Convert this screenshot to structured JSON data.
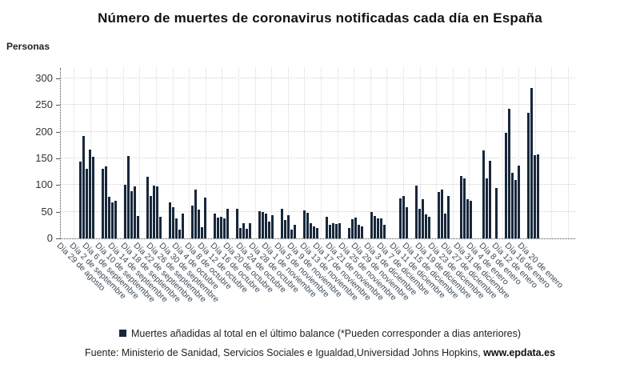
{
  "title": "Número de muertes de coronavirus notificadas cada día en España",
  "y_axis_title": "Personas",
  "legend": {
    "label": "Muertes añadidas al total en el último balance (*Pueden corresponder a dias anteriores)",
    "marker_color": "#17273b"
  },
  "source": {
    "prefix": "Fuente: Ministerio de Sanidad, Servicios Sociales e Igualdad,Universidad Johns Hopkins, ",
    "brand": "www.epdata.es"
  },
  "chart_data": {
    "type": "bar",
    "title": "Número de muertes de coronavirus notificadas cada día en España",
    "xlabel": "",
    "ylabel": "Personas",
    "ylim": [
      0,
      300
    ],
    "yticks": [
      0,
      50,
      100,
      150,
      200,
      250,
      300
    ],
    "grid": true,
    "legend_position": "bottom",
    "bar_color": "#17273b",
    "note": "Daily reported deaths; value 0 = day with no report (weekends/holidays). Series starts 29 de agosto, one entry per day.",
    "x_tick_every_days": 4,
    "x_tick_labels": [
      "Día 29 de agosto",
      "Día 2 de septiembre",
      "Día 6 de septiembre",
      "Día 10 de septiembre",
      "Día 14 de septiembre",
      "Día 18 de septiembre",
      "Día 22 de septiembre",
      "Día 26 de septiembre",
      "Día 30 de septiembre",
      "Día 4 de octubre",
      "Día 8 de octubre",
      "Día 12 de octubre",
      "Día 16 de octubre",
      "Día 20 de octubre",
      "Día 24 de octubre",
      "Día 28 de octubre",
      "Día 1 de noviembre",
      "Día 5 de noviembre",
      "Día 9 de noviembre",
      "Día 13 de noviembre",
      "Día 17 de noviembre",
      "Día 21 de noviembre",
      "Día 25 de noviembre",
      "Día 29 de noviembre",
      "Día 3 de diciembre",
      "Día 7 de diciembre",
      "Día 11 de diciembre",
      "Día 15 de diciembre",
      "Día 19 de diciembre",
      "Día 23 de diciembre",
      "Día 27 de diciembre",
      "Día 31 de diciembre",
      "Día 4 de enero",
      "Día 8 de enero",
      "Día 12 de enero",
      "Día 16 de enero",
      "Día 20 de enero"
    ],
    "values": [
      0,
      0,
      144,
      192,
      131,
      167,
      153,
      0,
      0,
      131,
      135,
      78,
      68,
      70,
      0,
      0,
      101,
      154,
      88,
      98,
      42,
      0,
      0,
      115,
      79,
      99,
      97,
      41,
      0,
      0,
      67,
      58,
      37,
      17,
      46,
      0,
      0,
      61,
      91,
      54,
      21,
      76,
      0,
      0,
      46,
      39,
      41,
      38,
      55,
      0,
      0,
      55,
      19,
      29,
      18,
      28,
      0,
      0,
      51,
      49,
      46,
      32,
      43,
      0,
      0,
      55,
      35,
      43,
      16,
      26,
      0,
      0,
      52,
      48,
      28,
      23,
      20,
      0,
      0,
      40,
      26,
      29,
      27,
      28,
      0,
      0,
      20,
      36,
      39,
      25,
      22,
      0,
      0,
      50,
      42,
      37,
      38,
      26,
      0,
      0,
      0,
      0,
      75,
      80,
      58,
      0,
      0,
      99,
      55,
      73,
      45,
      40,
      0,
      0,
      87,
      92,
      46,
      79,
      0,
      0,
      0,
      117,
      112,
      73,
      71,
      0,
      0,
      0,
      165,
      113,
      145,
      0,
      95,
      0,
      0,
      198,
      243,
      123,
      110,
      136,
      0,
      0,
      235,
      282,
      156,
      158
    ]
  }
}
